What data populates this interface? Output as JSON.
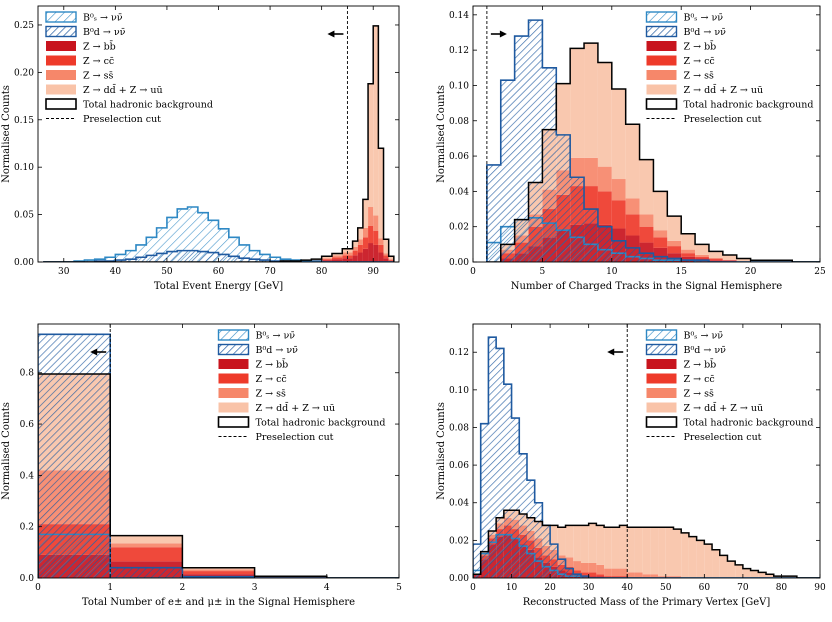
{
  "legend": {
    "bs": "B⁰ₛ → νν̄",
    "bd": "B⁰d → νν̄",
    "bb": "Z → bb̄",
    "cc": "Z → cc̄",
    "ss": "Z → ss̄",
    "uds": "Z → dd̄ + Z → uū",
    "total": "Total hadronic background",
    "cut": "Preselection cut"
  },
  "colors": {
    "bs": "#2e88c4",
    "bd": "#1f5aa0",
    "bb": "#c8141e",
    "cc": "#ee3a2a",
    "ss": "#f6876a",
    "uds": "#f9c3a8",
    "total": "#000000"
  },
  "chart_data": [
    {
      "id": "energy",
      "type": "histogram",
      "xlabel": "Total Event Energy [GeV]",
      "ylabel": "Normalised Counts",
      "xlim": [
        25,
        95
      ],
      "ylim": [
        0,
        0.27
      ],
      "xticks": [
        30,
        40,
        50,
        60,
        70,
        80,
        90
      ],
      "yticks": [
        0.0,
        0.05,
        0.1,
        0.15,
        0.2,
        0.25
      ],
      "tick_decimals": 2,
      "cut": 85,
      "cut_direction": "left",
      "legend_pos": "top-left",
      "bins": [
        26,
        28,
        30,
        32,
        34,
        36,
        38,
        40,
        42,
        44,
        46,
        48,
        50,
        52,
        54,
        56,
        58,
        60,
        62,
        64,
        66,
        68,
        70,
        72,
        74,
        76,
        78,
        80,
        82,
        84,
        86,
        87,
        88,
        89,
        90,
        91,
        92,
        93,
        94
      ],
      "bs": [
        0.0,
        0.0,
        0.0,
        0.001,
        0.002,
        0.003,
        0.005,
        0.008,
        0.012,
        0.018,
        0.026,
        0.036,
        0.047,
        0.056,
        0.058,
        0.052,
        0.044,
        0.035,
        0.026,
        0.018,
        0.012,
        0.008,
        0.005,
        0.003,
        0.002,
        0.001,
        0.001,
        0.0,
        0.0,
        0.0,
        0.0,
        0.0,
        0.0,
        0.0,
        0.0,
        0.0,
        0.0,
        0.0
      ],
      "bd": [
        0.0,
        0.0,
        0.0,
        0.0,
        0.0,
        0.001,
        0.001,
        0.002,
        0.003,
        0.005,
        0.007,
        0.009,
        0.011,
        0.012,
        0.012,
        0.011,
        0.01,
        0.008,
        0.006,
        0.004,
        0.003,
        0.002,
        0.001,
        0.001,
        0.0,
        0.0,
        0.0,
        0.0,
        0.0,
        0.0,
        0.0,
        0.0,
        0.0,
        0.0,
        0.0,
        0.0,
        0.0,
        0.0
      ],
      "bb": [
        0.0,
        0.0,
        0.0,
        0.0,
        0.0,
        0.0,
        0.0,
        0.0,
        0.0,
        0.0,
        0.0,
        0.0,
        0.0,
        0.0,
        0.0,
        0.0,
        0.0,
        0.0,
        0.0,
        0.0,
        0.0,
        0.0,
        0.0,
        0.0,
        0.0,
        0.001,
        0.001,
        0.002,
        0.003,
        0.004,
        0.007,
        0.01,
        0.014,
        0.02,
        0.018,
        0.01,
        0.004,
        0.001
      ],
      "cc": [
        0.0,
        0.0,
        0.0,
        0.0,
        0.0,
        0.0,
        0.0,
        0.0,
        0.0,
        0.0,
        0.0,
        0.0,
        0.0,
        0.0,
        0.0,
        0.0,
        0.0,
        0.0,
        0.0,
        0.0,
        0.0,
        0.0,
        0.0,
        0.0,
        0.0,
        0.0,
        0.001,
        0.001,
        0.002,
        0.003,
        0.005,
        0.008,
        0.012,
        0.018,
        0.015,
        0.008,
        0.003,
        0.001
      ],
      "ss": [
        0.0,
        0.0,
        0.0,
        0.0,
        0.0,
        0.0,
        0.0,
        0.0,
        0.0,
        0.0,
        0.0,
        0.0,
        0.0,
        0.0,
        0.0,
        0.0,
        0.0,
        0.0,
        0.0,
        0.0,
        0.0,
        0.0,
        0.0,
        0.0,
        0.0,
        0.0,
        0.0,
        0.001,
        0.002,
        0.003,
        0.004,
        0.006,
        0.01,
        0.02,
        0.016,
        0.007,
        0.002,
        0.001
      ],
      "uds": [
        0.0,
        0.0,
        0.0,
        0.0,
        0.0,
        0.0,
        0.0,
        0.0,
        0.0,
        0.0,
        0.0,
        0.0,
        0.0,
        0.0,
        0.0,
        0.0,
        0.0,
        0.0,
        0.0,
        0.0,
        0.0,
        0.0,
        0.0,
        0.001,
        0.001,
        0.001,
        0.001,
        0.002,
        0.002,
        0.004,
        0.006,
        0.012,
        0.03,
        0.13,
        0.2,
        0.095,
        0.015,
        0.003
      ]
    },
    {
      "id": "tracks",
      "type": "histogram",
      "xlabel": "Number of Charged Tracks in the Signal Hemisphere",
      "ylabel": "Normalised Counts",
      "xlim": [
        0,
        25
      ],
      "ylim": [
        0,
        0.145
      ],
      "xticks": [
        0,
        5,
        10,
        15,
        20,
        25
      ],
      "yticks": [
        0.0,
        0.02,
        0.04,
        0.06,
        0.08,
        0.1,
        0.12,
        0.14
      ],
      "tick_decimals": 2,
      "cut": 1,
      "cut_direction": "right",
      "legend_pos": "top-right",
      "bins": [
        1,
        2,
        3,
        4,
        5,
        6,
        7,
        8,
        9,
        10,
        11,
        12,
        13,
        14,
        15,
        16,
        17,
        18,
        19,
        20,
        21,
        22,
        23,
        24,
        25
      ],
      "bs": [
        0.011,
        0.02,
        0.024,
        0.025,
        0.022,
        0.018,
        0.014,
        0.01,
        0.007,
        0.005,
        0.003,
        0.002,
        0.001,
        0.001,
        0.001,
        0.0,
        0.0,
        0.0,
        0.0,
        0.0,
        0.0,
        0.0,
        0.0,
        0.0
      ],
      "bd": [
        0.055,
        0.103,
        0.128,
        0.137,
        0.11,
        0.072,
        0.048,
        0.03,
        0.02,
        0.012,
        0.008,
        0.005,
        0.003,
        0.002,
        0.001,
        0.001,
        0.0,
        0.0,
        0.0,
        0.0,
        0.0,
        0.0,
        0.0,
        0.0
      ],
      "bb": [
        0.0,
        0.002,
        0.005,
        0.009,
        0.014,
        0.018,
        0.021,
        0.022,
        0.021,
        0.019,
        0.015,
        0.011,
        0.008,
        0.005,
        0.003,
        0.002,
        0.001,
        0.001,
        0.0,
        0.0,
        0.0,
        0.0,
        0.0,
        0.0
      ],
      "cc": [
        0.0,
        0.003,
        0.006,
        0.011,
        0.016,
        0.02,
        0.022,
        0.021,
        0.019,
        0.016,
        0.012,
        0.009,
        0.006,
        0.004,
        0.002,
        0.001,
        0.001,
        0.0,
        0.0,
        0.0,
        0.0,
        0.0,
        0.0,
        0.0
      ],
      "ss": [
        0.0,
        0.002,
        0.004,
        0.007,
        0.011,
        0.014,
        0.016,
        0.016,
        0.014,
        0.012,
        0.009,
        0.007,
        0.004,
        0.003,
        0.002,
        0.001,
        0.0,
        0.0,
        0.0,
        0.0,
        0.0,
        0.0,
        0.0,
        0.0
      ],
      "uds": [
        0.0,
        0.003,
        0.009,
        0.018,
        0.034,
        0.049,
        0.062,
        0.065,
        0.059,
        0.051,
        0.042,
        0.031,
        0.022,
        0.014,
        0.009,
        0.006,
        0.004,
        0.003,
        0.002,
        0.001,
        0.001,
        0.001,
        0.0,
        0.0
      ]
    },
    {
      "id": "leptons",
      "type": "histogram",
      "xlabel": "Total Number of e± and μ± in the Signal Hemisphere",
      "ylabel": "Normalised Counts",
      "xlim": [
        0,
        5
      ],
      "ylim": [
        0,
        0.99
      ],
      "xticks": [
        0,
        1,
        2,
        3,
        4,
        5
      ],
      "yticks": [
        0.0,
        0.2,
        0.4,
        0.6,
        0.8
      ],
      "tick_decimals": 1,
      "cut": 1,
      "cut_direction": "left",
      "legend_pos": "top-right",
      "bins": [
        0,
        1,
        2,
        3,
        4,
        5
      ],
      "bs": [
        0.17,
        0.0,
        0.0,
        0.0,
        0.0
      ],
      "bd": [
        0.95,
        0.04,
        0.005,
        0.0,
        0.0
      ],
      "bb": [
        0.09,
        0.065,
        0.015,
        0.003,
        0.0
      ],
      "cc": [
        0.12,
        0.055,
        0.012,
        0.002,
        0.0
      ],
      "ss": [
        0.21,
        0.015,
        0.006,
        0.0,
        0.0
      ],
      "uds": [
        0.375,
        0.03,
        0.007,
        0.002,
        0.0
      ]
    },
    {
      "id": "mass",
      "type": "histogram",
      "xlabel": "Reconstructed Mass of the Primary Vertex [GeV]",
      "ylabel": "Normalised Counts",
      "xlim": [
        0,
        90
      ],
      "ylim": [
        0,
        0.135
      ],
      "xticks": [
        0,
        10,
        20,
        30,
        40,
        50,
        60,
        70,
        80,
        90
      ],
      "yticks": [
        0.0,
        0.02,
        0.04,
        0.06,
        0.08,
        0.1,
        0.12
      ],
      "tick_decimals": 2,
      "cut": 40,
      "cut_direction": "left",
      "legend_pos": "top-right",
      "bins": [
        0,
        2,
        4,
        6,
        8,
        10,
        12,
        14,
        16,
        18,
        20,
        22,
        24,
        26,
        28,
        30,
        32,
        34,
        36,
        38,
        40,
        42,
        44,
        46,
        48,
        50,
        52,
        54,
        56,
        58,
        60,
        62,
        64,
        66,
        68,
        70,
        72,
        74,
        76,
        78,
        80,
        82,
        84,
        86,
        88,
        90
      ],
      "bs": [
        0.004,
        0.013,
        0.019,
        0.023,
        0.023,
        0.021,
        0.017,
        0.013,
        0.009,
        0.006,
        0.004,
        0.002,
        0.001,
        0.001,
        0.0,
        0.0,
        0.0,
        0.0,
        0.0,
        0.0,
        0.0,
        0.0,
        0.0,
        0.0,
        0.0,
        0.0,
        0.0,
        0.0,
        0.0,
        0.0,
        0.0,
        0.0,
        0.0,
        0.0,
        0.0,
        0.0,
        0.0,
        0.0,
        0.0,
        0.0,
        0.0,
        0.0,
        0.0,
        0.0,
        0.0
      ],
      "bd": [
        0.018,
        0.082,
        0.128,
        0.122,
        0.103,
        0.085,
        0.066,
        0.052,
        0.04,
        0.028,
        0.018,
        0.01,
        0.005,
        0.002,
        0.001,
        0.0,
        0.0,
        0.0,
        0.0,
        0.0,
        0.0,
        0.0,
        0.0,
        0.0,
        0.0,
        0.0,
        0.0,
        0.0,
        0.0,
        0.0,
        0.0,
        0.0,
        0.0,
        0.0,
        0.0,
        0.0,
        0.0,
        0.0,
        0.0,
        0.0,
        0.0,
        0.0,
        0.0,
        0.0,
        0.0
      ],
      "bb": [
        0.002,
        0.01,
        0.018,
        0.022,
        0.023,
        0.021,
        0.018,
        0.015,
        0.011,
        0.008,
        0.006,
        0.004,
        0.003,
        0.002,
        0.001,
        0.001,
        0.001,
        0.0,
        0.0,
        0.0,
        0.0,
        0.0,
        0.0,
        0.0,
        0.0,
        0.0,
        0.0,
        0.0,
        0.0,
        0.0,
        0.0,
        0.0,
        0.0,
        0.0,
        0.0,
        0.0,
        0.0,
        0.0,
        0.0,
        0.0,
        0.0,
        0.0,
        0.0,
        0.0,
        0.0
      ],
      "cc": [
        0.0,
        0.002,
        0.003,
        0.004,
        0.005,
        0.005,
        0.005,
        0.005,
        0.005,
        0.004,
        0.004,
        0.003,
        0.003,
        0.002,
        0.002,
        0.002,
        0.001,
        0.001,
        0.001,
        0.001,
        0.0,
        0.0,
        0.0,
        0.0,
        0.0,
        0.0,
        0.0,
        0.0,
        0.0,
        0.0,
        0.0,
        0.0,
        0.0,
        0.0,
        0.0,
        0.0,
        0.0,
        0.0,
        0.0,
        0.0,
        0.0,
        0.0,
        0.0,
        0.0,
        0.0
      ],
      "ss": [
        0.0,
        0.001,
        0.002,
        0.003,
        0.004,
        0.005,
        0.005,
        0.005,
        0.005,
        0.005,
        0.005,
        0.005,
        0.005,
        0.005,
        0.005,
        0.005,
        0.005,
        0.004,
        0.004,
        0.004,
        0.003,
        0.003,
        0.002,
        0.002,
        0.001,
        0.001,
        0.001,
        0.0,
        0.0,
        0.0,
        0.0,
        0.0,
        0.0,
        0.0,
        0.0,
        0.0,
        0.0,
        0.0,
        0.0,
        0.0,
        0.0,
        0.0,
        0.0,
        0.0,
        0.0
      ],
      "uds": [
        0.0,
        0.001,
        0.002,
        0.003,
        0.004,
        0.005,
        0.006,
        0.007,
        0.009,
        0.011,
        0.013,
        0.015,
        0.017,
        0.019,
        0.02,
        0.021,
        0.021,
        0.022,
        0.022,
        0.023,
        0.024,
        0.024,
        0.025,
        0.025,
        0.026,
        0.026,
        0.025,
        0.024,
        0.022,
        0.02,
        0.018,
        0.015,
        0.012,
        0.009,
        0.007,
        0.005,
        0.004,
        0.003,
        0.002,
        0.001,
        0.001,
        0.001,
        0.0,
        0.0,
        0.0
      ]
    }
  ]
}
